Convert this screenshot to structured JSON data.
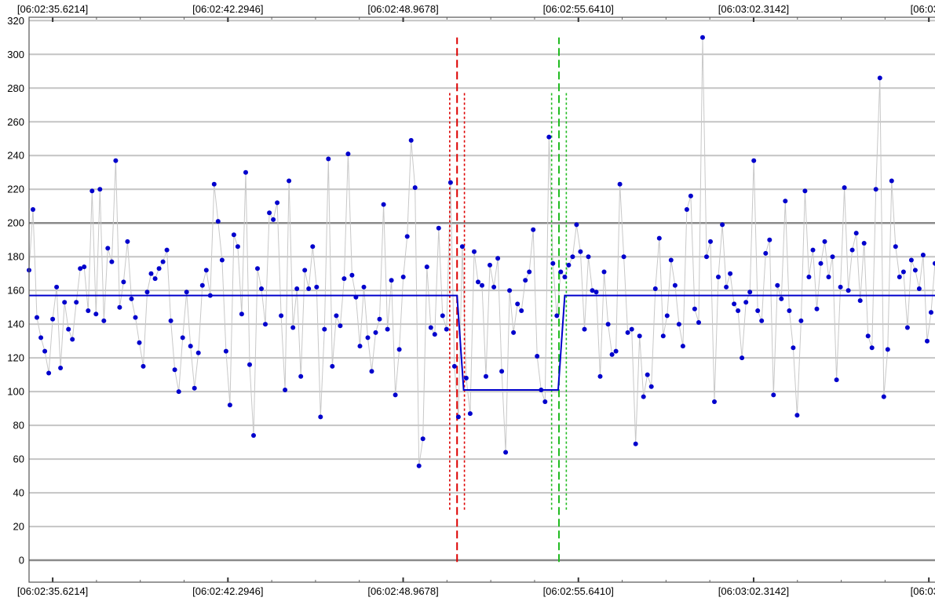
{
  "chart_data": {
    "type": "scatter",
    "title": "",
    "xlabel": "",
    "ylabel": "",
    "ylim": [
      -13,
      322
    ],
    "yticks": [
      0,
      20,
      40,
      60,
      80,
      100,
      120,
      140,
      160,
      180,
      200,
      220,
      240,
      260,
      280,
      300,
      320
    ],
    "x_tick_labels": [
      "[06:02:35.6214]",
      "[06:02:42.2946]",
      "[06:02:48.9678]",
      "[06:02:55.6410]",
      "[06:03:02.3142]",
      "[06:03:0"
    ],
    "x_tick_positions_s": [
      0,
      6.6732,
      13.3464,
      20.0196,
      26.6928,
      33.366
    ],
    "x_range_s": [
      -0.9,
      33.6
    ],
    "grid": true,
    "series": [
      {
        "kind": "scatter",
        "color": "#0000cc",
        "line_color": "#c8c8c8",
        "x_range_s": [
          -0.9,
          33.6
        ],
        "y": [
          172,
          208,
          144,
          132,
          124,
          111,
          143,
          162,
          114,
          153,
          137,
          131,
          153,
          173,
          174,
          148,
          219,
          146,
          220,
          142,
          185,
          177,
          237,
          150,
          165,
          189,
          155,
          144,
          129,
          115,
          159,
          170,
          167,
          173,
          177,
          184,
          142,
          113,
          100,
          132,
          159,
          127,
          102,
          123,
          163,
          172,
          157,
          223,
          201,
          178,
          124,
          92,
          193,
          186,
          146,
          230,
          116,
          74,
          173,
          161,
          140,
          206,
          202,
          212,
          145,
          101,
          225,
          138,
          161,
          109,
          172,
          161,
          186,
          162,
          85,
          137,
          238,
          115,
          145,
          139,
          167,
          241,
          169,
          156,
          127,
          162,
          132,
          112,
          135,
          143,
          211,
          137,
          166,
          98,
          125,
          168,
          192,
          249,
          221,
          56,
          72,
          174,
          138,
          134,
          197,
          145,
          137,
          224,
          115,
          85,
          186,
          108,
          87,
          183,
          165,
          163,
          109,
          175,
          162,
          179,
          112,
          64,
          160,
          135,
          152,
          148,
          166,
          171,
          196,
          121,
          101,
          94,
          251,
          176,
          145,
          171,
          168,
          175,
          180,
          199,
          183,
          137,
          180,
          160,
          159,
          109,
          171,
          140,
          122,
          124,
          223,
          180,
          135,
          137,
          69,
          133,
          97,
          110,
          103,
          161,
          191,
          133,
          145,
          178,
          163,
          140,
          127,
          208,
          216,
          149,
          141,
          310,
          180,
          189,
          94,
          168,
          199,
          162,
          170,
          152,
          148,
          120,
          153,
          159,
          237,
          148,
          142,
          182,
          190,
          98,
          163,
          155,
          213,
          148,
          126,
          86,
          142,
          219,
          168,
          184,
          149,
          176,
          189,
          168,
          180,
          107,
          162,
          221,
          160,
          184,
          194,
          154,
          188,
          133,
          126,
          220,
          286,
          97,
          125,
          225,
          186,
          168,
          171,
          138,
          178,
          172,
          161,
          181,
          130,
          147,
          176
        ],
        "step_line": {
          "color": "#0000cc",
          "points": [
            [
              -0.9,
              157
            ],
            [
              15.4,
              157
            ],
            [
              15.65,
              101
            ],
            [
              19.25,
              101
            ],
            [
              19.5,
              157
            ],
            [
              33.6,
              157
            ]
          ]
        }
      }
    ],
    "markers": [
      {
        "color": "#dd0000",
        "x_s": 15.4,
        "y_from": -1,
        "y_to": 310,
        "style": "dashed"
      },
      {
        "color": "#dd0000",
        "x_s": 15.12,
        "y_from": 30,
        "y_to": 278,
        "style": "dotted"
      },
      {
        "color": "#dd0000",
        "x_s": 15.68,
        "y_from": 30,
        "y_to": 278,
        "style": "dotted"
      },
      {
        "color": "#22bb22",
        "x_s": 19.28,
        "y_from": -1,
        "y_to": 310,
        "style": "dashed"
      },
      {
        "color": "#22bb22",
        "x_s": 19.0,
        "y_from": 30,
        "y_to": 278,
        "style": "dotted"
      },
      {
        "color": "#22bb22",
        "x_s": 19.56,
        "y_from": 30,
        "y_to": 278,
        "style": "dotted"
      }
    ]
  }
}
